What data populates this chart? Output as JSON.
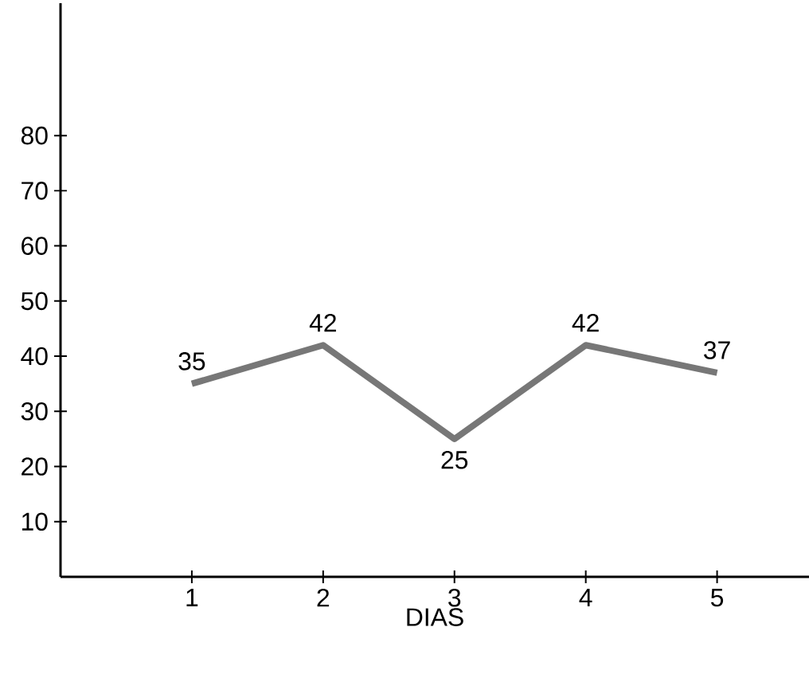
{
  "chart_data": {
    "type": "line",
    "xlabel": "DIAS",
    "x": [
      1,
      2,
      3,
      4,
      5
    ],
    "values": [
      35,
      42,
      25,
      42,
      37
    ],
    "color": "#777777",
    "xlim": [
      0,
      5.7
    ],
    "ylim": [
      0,
      104
    ],
    "xticks": [
      1,
      2,
      3,
      4,
      5
    ],
    "yticks": [
      10,
      20,
      30,
      40,
      50,
      60,
      70,
      80
    ],
    "data_labels": true,
    "grid": false,
    "marker": "none",
    "line_style": "solid"
  }
}
